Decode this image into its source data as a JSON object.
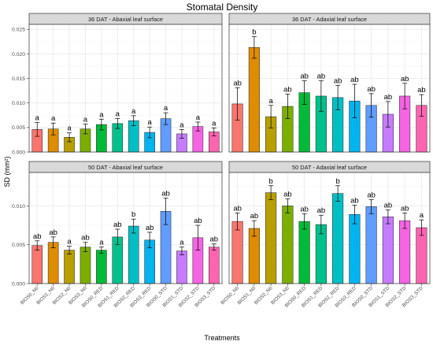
{
  "figure": {
    "title": "Stomatal Density",
    "xlabel": "Treatments",
    "ylabel": "SD (mm²)"
  },
  "chart_data": [
    {
      "type": "bar",
      "panel": "36 DAT - Abaxial leaf surface",
      "categories": [
        "BIOS0_N0",
        "BIOS1_N0",
        "BIOS2_N0",
        "BIOS3_N0",
        "BIOS0_RED",
        "BIOS1_RED",
        "BIOS2_RED",
        "BIOS3_RED",
        "BIOS0_STD",
        "BIOS1_STD",
        "BIOS2_STD",
        "BIOS3_STD"
      ],
      "values": [
        0.0046,
        0.0047,
        0.003,
        0.0047,
        0.0056,
        0.0058,
        0.0064,
        0.004,
        0.0068,
        0.0037,
        0.0052,
        0.0041
      ],
      "errors": [
        0.0014,
        0.0012,
        0.0009,
        0.001,
        0.0011,
        0.001,
        0.001,
        0.0011,
        0.0012,
        0.0009,
        0.0009,
        0.0008
      ],
      "labels": [
        "a",
        "a",
        "a",
        "a",
        "a",
        "a",
        "a",
        "a",
        "a",
        "a",
        "a",
        "a"
      ],
      "ylim": [
        0,
        0.026
      ],
      "yticks": [
        0.0,
        0.005,
        0.01,
        0.015,
        0.02,
        0.025
      ],
      "ytick_labels": [
        "0.000",
        "0.005",
        "0.010",
        "0.015",
        "0.020",
        "0.025"
      ]
    },
    {
      "type": "bar",
      "panel": "36 DAT - Adaxial leaf surface",
      "categories": [
        "BIOS0_N0",
        "BIOS1_N0",
        "BIOS2_N0",
        "BIOS3_N0",
        "BIOS0_RED",
        "BIOS1_RED",
        "BIOS2_RED",
        "BIOS3_RED",
        "BIOS0_STD",
        "BIOS1_STD",
        "BIOS2_STD",
        "BIOS3_STD"
      ],
      "values": [
        0.0098,
        0.0213,
        0.0072,
        0.0093,
        0.0121,
        0.0114,
        0.0111,
        0.0104,
        0.0095,
        0.0077,
        0.0114,
        0.0095
      ],
      "errors": [
        0.0033,
        0.0022,
        0.0023,
        0.0025,
        0.0024,
        0.0031,
        0.0025,
        0.0034,
        0.0024,
        0.0026,
        0.0026,
        0.0022
      ],
      "labels": [
        "ab",
        "b",
        "a",
        "ab",
        "ab",
        "ab",
        "ab",
        "ab",
        "ab",
        "ab",
        "ab",
        "ab"
      ],
      "ylim": [
        0,
        0.026
      ],
      "yticks": [
        0.0,
        0.005,
        0.01,
        0.015,
        0.02,
        0.025
      ],
      "ytick_labels": [
        "0.000",
        "0.005",
        "0.010",
        "0.015",
        "0.020",
        "0.025"
      ]
    },
    {
      "type": "bar",
      "panel": "50 DAT - Abaxial leaf surface",
      "categories": [
        "BIOS0_N0",
        "BIOS1_N0",
        "BIOS2_N0",
        "BIOS3_N0",
        "BIOS0_RED",
        "BIOS1_RED",
        "BIOS2_RED",
        "BIOS3_RED",
        "BIOS0_STD",
        "BIOS1_STD",
        "BIOS2_STD",
        "BIOS3_STD"
      ],
      "values": [
        0.0049,
        0.0053,
        0.0043,
        0.0047,
        0.0043,
        0.006,
        0.0074,
        0.0056,
        0.0093,
        0.0042,
        0.0059,
        0.0047
      ],
      "errors": [
        0.0006,
        0.0007,
        0.0005,
        0.0006,
        0.0004,
        0.001,
        0.0009,
        0.001,
        0.0017,
        0.0005,
        0.0016,
        0.0004
      ],
      "labels": [
        "ab",
        "ab",
        "a",
        "ab",
        "a",
        "ab",
        "b",
        "ab",
        "ab",
        "a",
        "ab",
        "ab"
      ],
      "ylim": [
        0,
        0.0143
      ],
      "yticks": [
        0.0,
        0.005,
        0.01
      ],
      "ytick_labels": [
        "0.000",
        "0.005",
        "0.010"
      ]
    },
    {
      "type": "bar",
      "panel": "50 DAT - Adaxial leaf surface",
      "categories": [
        "BIOS0_N0",
        "BIOS1_N0",
        "BIOS2_N0",
        "BIOS3_N0",
        "BIOS0_RED",
        "BIOS1_RED",
        "BIOS2_RED",
        "BIOS3_RED",
        "BIOS0_STD",
        "BIOS1_STD",
        "BIOS2_STD",
        "BIOS3_STD"
      ],
      "values": [
        0.008,
        0.0071,
        0.0117,
        0.01,
        0.008,
        0.0076,
        0.0116,
        0.0089,
        0.0099,
        0.0086,
        0.0081,
        0.0072
      ],
      "errors": [
        0.0011,
        0.001,
        0.0009,
        0.0009,
        0.001,
        0.0012,
        0.001,
        0.0012,
        0.0009,
        0.0009,
        0.001,
        0.001
      ],
      "labels": [
        "ab",
        "ab",
        "b",
        "ab",
        "ab",
        "ab",
        "b",
        "ab",
        "ab",
        "ab",
        "ab",
        "a"
      ],
      "ylim": [
        0,
        0.0143
      ],
      "yticks": [
        0.0,
        0.005,
        0.01
      ],
      "ytick_labels": [
        "0.000",
        "0.005",
        "0.010"
      ]
    }
  ],
  "colors": [
    "#F8766D",
    "#DE8C00",
    "#B79F00",
    "#7CAE00",
    "#00BA38",
    "#00C08B",
    "#00BFC4",
    "#00B4F0",
    "#619CFF",
    "#C77CFF",
    "#F564E3",
    "#FF64B0"
  ],
  "theme": {
    "panel_border": "#333333",
    "strip_fill": "#d9d9d9",
    "grid_major": "#ebebeb",
    "grid_minor": "#f5f5f5"
  }
}
